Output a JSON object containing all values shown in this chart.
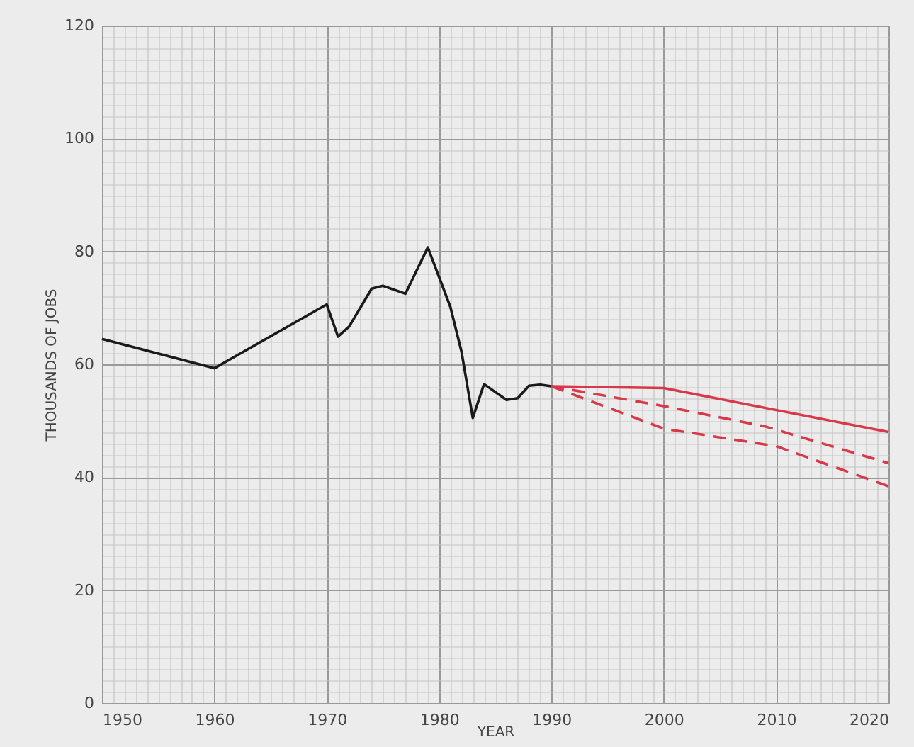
{
  "chart_data": {
    "type": "line",
    "xlabel": "YEAR",
    "ylabel": "THOUSANDS OF JOBS",
    "xlim": [
      1950,
      2020
    ],
    "xticks": [
      1950,
      1960,
      1970,
      1980,
      1990,
      2000,
      2010,
      2020
    ],
    "ylim": [
      0,
      120
    ],
    "yticks": [
      0,
      20,
      40,
      60,
      80,
      100,
      120
    ],
    "grid": true,
    "marker": "none",
    "series": [
      {
        "color": "#1a1a1a",
        "line_style": "solid",
        "x": [
          1950,
          1960,
          1970,
          1971,
          1972,
          1974,
          1975,
          1977,
          1979,
          1981,
          1982,
          1983,
          1984,
          1986,
          1987,
          1988,
          1989,
          1990
        ],
        "values": [
          64.5,
          59.3,
          70.6,
          64.9,
          66.7,
          73.4,
          73.9,
          72.5,
          80.7,
          70.2,
          62.2,
          50.5,
          56.5,
          53.7,
          54,
          56.2,
          56.4,
          56.1
        ]
      },
      {
        "color": "#d8394a",
        "line_style": "solid",
        "x": [
          1990,
          2000,
          2020
        ],
        "values": [
          56.1,
          55.8,
          48
        ]
      },
      {
        "color": "#d8394a",
        "line_style": "dashed",
        "x": [
          1990,
          2000,
          2009,
          2020
        ],
        "values": [
          56.1,
          52.6,
          49,
          42.5
        ]
      },
      {
        "color": "#d8394a",
        "line_style": "dashed",
        "x": [
          1990,
          2000,
          2010,
          2020
        ],
        "values": [
          56.1,
          48.6,
          45.5,
          38.4
        ]
      }
    ]
  }
}
